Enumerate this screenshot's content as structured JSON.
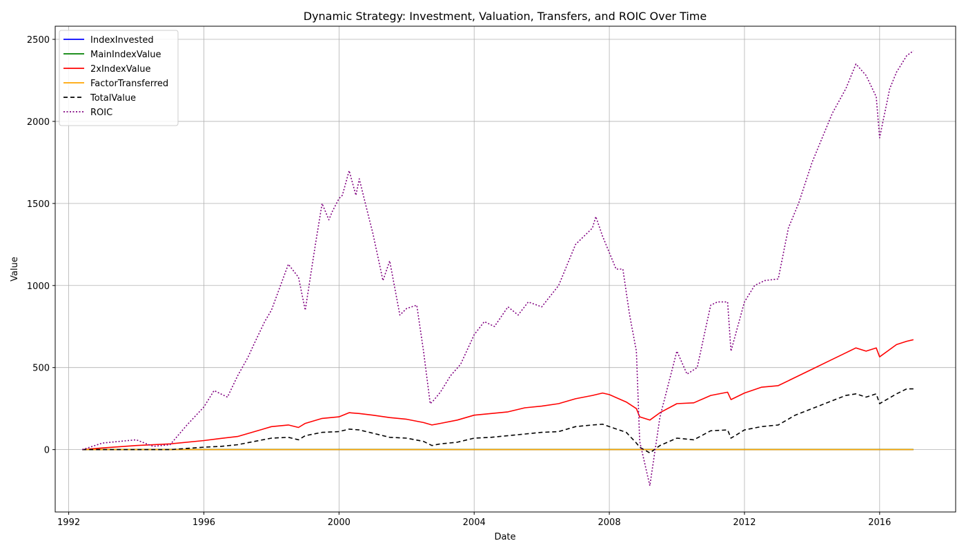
{
  "chart_data": {
    "type": "line",
    "title": "Dynamic Strategy: Investment, Valuation, Transfers, and ROIC Over Time",
    "xlabel": "Date",
    "ylabel": "Value",
    "xlim": [
      1991.6,
      2018.25
    ],
    "ylim": [
      -380,
      2580
    ],
    "x_ticks": [
      1992,
      1996,
      2000,
      2004,
      2008,
      2012,
      2016
    ],
    "x_tick_labels": [
      "1992",
      "1996",
      "2000",
      "2004",
      "2008",
      "2012",
      "2016"
    ],
    "y_ticks": [
      0,
      500,
      1000,
      1500,
      2000,
      2500
    ],
    "y_tick_labels": [
      "0",
      "500",
      "1000",
      "1500",
      "2000",
      "2500"
    ],
    "grid": true,
    "legend_position": "top-left",
    "series": [
      {
        "name": "IndexInvested",
        "color": "#0000ff",
        "style": "solid",
        "x": [
          1992.4,
          2017.0
        ],
        "y": [
          0,
          0
        ]
      },
      {
        "name": "MainIndexValue",
        "color": "#008000",
        "style": "solid",
        "x": [
          1992.4,
          2017.0
        ],
        "y": [
          1,
          1
        ]
      },
      {
        "name": "2xIndexValue",
        "color": "#ff0000",
        "style": "solid",
        "x": [
          1992.4,
          1993.0,
          1994.0,
          1995.0,
          1996.0,
          1996.5,
          1997.0,
          1997.5,
          1998.0,
          1998.5,
          1998.8,
          1999.0,
          1999.5,
          2000.0,
          2000.3,
          2000.6,
          2001.0,
          2001.5,
          2002.0,
          2002.5,
          2002.75,
          2003.0,
          2003.5,
          2004.0,
          2004.5,
          2005.0,
          2005.5,
          2006.0,
          2006.5,
          2007.0,
          2007.5,
          2007.8,
          2008.0,
          2008.5,
          2008.8,
          2008.9,
          2009.2,
          2009.5,
          2010.0,
          2010.5,
          2011.0,
          2011.5,
          2011.6,
          2012.0,
          2012.5,
          2013.0,
          2013.5,
          2014.0,
          2014.5,
          2015.0,
          2015.3,
          2015.6,
          2015.9,
          2016.0,
          2016.5,
          2016.8,
          2017.0
        ],
        "y": [
          0,
          10,
          25,
          35,
          55,
          68,
          80,
          110,
          140,
          150,
          135,
          160,
          190,
          200,
          225,
          220,
          210,
          195,
          185,
          165,
          150,
          160,
          180,
          210,
          220,
          230,
          255,
          265,
          280,
          310,
          330,
          345,
          335,
          290,
          250,
          200,
          180,
          225,
          280,
          285,
          330,
          350,
          305,
          345,
          380,
          390,
          440,
          490,
          540,
          590,
          620,
          600,
          620,
          565,
          640,
          660,
          670
        ]
      },
      {
        "name": "FactorTransferred",
        "color": "#ffa500",
        "style": "solid",
        "x": [
          1992.4,
          2017.0
        ],
        "y": [
          0,
          0
        ]
      },
      {
        "name": "TotalValue",
        "color": "#000000",
        "style": "dashed",
        "x": [
          1992.4,
          1993.0,
          1994.0,
          1995.0,
          1996.0,
          1996.5,
          1997.0,
          1997.5,
          1998.0,
          1998.5,
          1998.8,
          1999.0,
          1999.5,
          2000.0,
          2000.3,
          2000.6,
          2001.0,
          2001.5,
          2002.0,
          2002.5,
          2002.75,
          2003.0,
          2003.5,
          2004.0,
          2004.5,
          2005.0,
          2005.5,
          2006.0,
          2006.5,
          2007.0,
          2007.5,
          2007.8,
          2008.0,
          2008.5,
          2008.8,
          2008.9,
          2009.2,
          2009.5,
          2010.0,
          2010.5,
          2011.0,
          2011.5,
          2011.6,
          2012.0,
          2012.5,
          2013.0,
          2013.5,
          2014.0,
          2014.5,
          2015.0,
          2015.3,
          2015.6,
          2015.9,
          2016.0,
          2016.5,
          2016.8,
          2017.0
        ],
        "y": [
          0,
          0,
          0,
          0,
          15,
          20,
          30,
          50,
          70,
          75,
          60,
          85,
          105,
          110,
          125,
          120,
          100,
          75,
          70,
          50,
          25,
          35,
          45,
          70,
          75,
          85,
          95,
          105,
          110,
          140,
          150,
          155,
          140,
          105,
          40,
          15,
          -20,
          25,
          70,
          60,
          115,
          120,
          70,
          120,
          140,
          150,
          210,
          250,
          290,
          330,
          340,
          320,
          340,
          280,
          340,
          370,
          370
        ]
      },
      {
        "name": "ROIC",
        "color": "#800080",
        "style": "dotted",
        "x": [
          1992.4,
          1993.0,
          1993.5,
          1994.0,
          1994.5,
          1995.0,
          1995.5,
          1996.0,
          1996.3,
          1996.5,
          1996.7,
          1997.0,
          1997.3,
          1997.5,
          1997.8,
          1998.0,
          1998.5,
          1998.8,
          1999.0,
          1999.3,
          1999.5,
          1999.7,
          1999.8,
          2000.0,
          2000.1,
          2000.3,
          2000.5,
          2000.6,
          2000.9,
          2001.0,
          2001.3,
          2001.5,
          2001.8,
          2002.0,
          2002.3,
          2002.5,
          2002.7,
          2002.8,
          2003.0,
          2003.3,
          2003.6,
          2004.0,
          2004.3,
          2004.6,
          2005.0,
          2005.3,
          2005.6,
          2006.0,
          2006.5,
          2007.0,
          2007.5,
          2007.6,
          2007.8,
          2008.0,
          2008.2,
          2008.4,
          2008.6,
          2008.8,
          2008.9,
          2009.2,
          2009.5,
          2010.0,
          2010.3,
          2010.6,
          2011.0,
          2011.2,
          2011.5,
          2011.6,
          2012.0,
          2012.3,
          2012.6,
          2013.0,
          2013.3,
          2013.6,
          2014.0,
          2014.3,
          2014.6,
          2015.0,
          2015.3,
          2015.6,
          2015.9,
          2016.0,
          2016.3,
          2016.5,
          2016.8,
          2017.0
        ],
        "y": [
          0,
          40,
          50,
          60,
          20,
          30,
          150,
          260,
          360,
          340,
          320,
          450,
          560,
          650,
          780,
          850,
          1130,
          1050,
          850,
          1250,
          1500,
          1400,
          1450,
          1530,
          1550,
          1700,
          1550,
          1650,
          1400,
          1320,
          1030,
          1150,
          820,
          860,
          880,
          600,
          280,
          300,
          350,
          450,
          520,
          700,
          780,
          750,
          870,
          820,
          900,
          870,
          1000,
          1250,
          1350,
          1420,
          1300,
          1200,
          1100,
          1100,
          820,
          600,
          50,
          -220,
          200,
          600,
          460,
          500,
          880,
          900,
          900,
          600,
          900,
          1000,
          1030,
          1040,
          1350,
          1500,
          1750,
          1900,
          2050,
          2200,
          2350,
          2280,
          2150,
          1900,
          2200,
          2300,
          2400,
          2430
        ]
      }
    ]
  }
}
